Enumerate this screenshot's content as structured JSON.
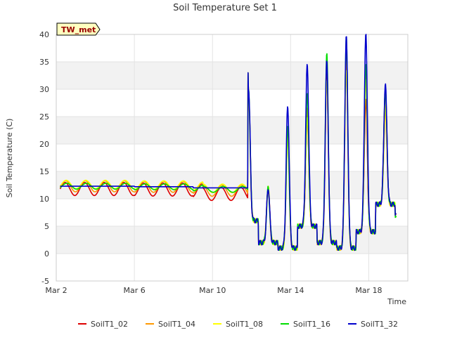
{
  "chart_data": {
    "type": "line",
    "title": "Soil Temperature Set 1",
    "xlabel": "Time",
    "ylabel": "Soil Temperature (C)",
    "station_badge": "TW_met",
    "x_unit": "day of March",
    "xlim": [
      2.0,
      20.0
    ],
    "ylim": [
      -5,
      40
    ],
    "x_ticks": [
      {
        "label": "Mar 2",
        "day": 2
      },
      {
        "label": "Mar 6",
        "day": 6
      },
      {
        "label": "Mar 10",
        "day": 10
      },
      {
        "label": "Mar 14",
        "day": 14
      },
      {
        "label": "Mar 18",
        "day": 18
      }
    ],
    "y_ticks": [
      -5,
      0,
      5,
      10,
      15,
      20,
      25,
      30,
      35,
      40
    ],
    "grid": true,
    "banded_background": true,
    "legend_position": "bottom",
    "series": [
      {
        "name": "SoilT1_02",
        "color": "#dd0000",
        "amp": 1.0,
        "offset": -0.5,
        "phase": 0.0,
        "peaks": [
          [
            11.85,
            29
          ],
          [
            12.95,
            12
          ],
          [
            13.85,
            23
          ],
          [
            14.85,
            25
          ],
          [
            15.85,
            33
          ],
          [
            16.85,
            36
          ],
          [
            17.85,
            28
          ],
          [
            18.55,
            30
          ]
        ]
      },
      {
        "name": "SoilT1_04",
        "color": "#ff9900",
        "amp": 0.85,
        "offset": 0.0,
        "phase": 0.03,
        "peaks": [
          [
            11.85,
            29
          ],
          [
            12.95,
            12
          ],
          [
            13.85,
            22
          ],
          [
            14.85,
            27
          ],
          [
            15.85,
            32
          ],
          [
            16.85,
            37
          ],
          [
            17.85,
            33
          ],
          [
            18.55,
            26
          ]
        ]
      },
      {
        "name": "SoilT1_08",
        "color": "#ffff00",
        "amp": 0.65,
        "offset": 0.3,
        "phase": 0.06,
        "peaks": [
          [
            11.85,
            28
          ],
          [
            12.95,
            12
          ],
          [
            13.85,
            21
          ],
          [
            14.85,
            25
          ],
          [
            15.85,
            32
          ],
          [
            16.85,
            34
          ],
          [
            17.85,
            32
          ],
          [
            18.55,
            27
          ]
        ]
      },
      {
        "name": "SoilT1_16",
        "color": "#00dd00",
        "amp": 0.45,
        "offset": 0.0,
        "phase": 0.09,
        "peaks": [
          [
            11.85,
            30
          ],
          [
            12.95,
            12
          ],
          [
            13.85,
            23
          ],
          [
            14.85,
            29
          ],
          [
            15.85,
            36.5
          ],
          [
            16.85,
            39.5
          ],
          [
            17.85,
            35
          ],
          [
            18.55,
            30
          ]
        ]
      },
      {
        "name": "SoilT1_32",
        "color": "#0000cc",
        "amp": 0.0,
        "offset": 0.0,
        "phase": 0.0,
        "peaks": [
          [
            11.85,
            30
          ],
          [
            12.95,
            12
          ],
          [
            13.85,
            27
          ],
          [
            14.85,
            34.5
          ],
          [
            15.85,
            35
          ],
          [
            16.85,
            39.5
          ],
          [
            17.85,
            40
          ],
          [
            18.55,
            31
          ]
        ]
      }
    ]
  }
}
